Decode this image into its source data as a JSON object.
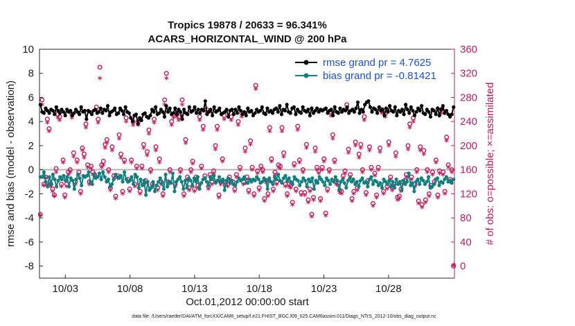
{
  "chart_data": {
    "type": "line",
    "title_line1": "Tropics 19878 / 20633 = 96.341%",
    "title_line2": "ACARS_HORIZONTAL_WIND @ 200 hPa",
    "xlabel": "Oct.01,2012 00:00:00 start",
    "ylabel": "rmse and bias (model - observation)",
    "y2label": "# of obs: o=possible; ×=assimilated",
    "footer": "data file: /Users/raeder/DAI/ATM_forcXX/CAM6_setup/f.e21.FHIST_BGC.f09_025.CAM6assim.011/Diags_NTrS_2012-10/obs_diag_output.nc",
    "x_tick_labels": [
      "10/03",
      "10/08",
      "10/13",
      "10/18",
      "10/23",
      "10/28"
    ],
    "x_tick_days": [
      3,
      8,
      13,
      18,
      23,
      28
    ],
    "xlim": [
      1.0,
      33.1
    ],
    "ylim": [
      -9,
      10
    ],
    "y_ticks": [
      -8,
      -6,
      -4,
      -2,
      0,
      2,
      4,
      6,
      8,
      10
    ],
    "y2lim": [
      -20,
      360
    ],
    "y2_ticks": [
      0,
      40,
      80,
      120,
      160,
      200,
      240,
      280,
      320,
      360
    ],
    "legend": [
      {
        "name": "rmse grand pr = 4.7625",
        "color": "#000000"
      },
      {
        "name": "bias grand pr = -0.81421",
        "color": "#0f7f7f"
      }
    ],
    "colors": {
      "rmse": "#000000",
      "bias": "#0f7f7f",
      "obs": "#c2185b",
      "zero": "#b3b3b3"
    },
    "series": [
      {
        "name": "rmse",
        "values": [
          5.4,
          4.8,
          4.7,
          5.1,
          4.9,
          4.7,
          5.0,
          4.9,
          4.6,
          5.2,
          4.9,
          4.7,
          5.0,
          4.8,
          4.5,
          5.0,
          4.8,
          4.9,
          4.5,
          4.7,
          5.0,
          4.8,
          4.6,
          5.2,
          4.8,
          4.9,
          4.2,
          4.9,
          4.8,
          4.6,
          4.9,
          5.0,
          4.7,
          4.8,
          5.1,
          4.7,
          5.0,
          4.9,
          5.3,
          4.5,
          4.8,
          4.9,
          5.1,
          4.6,
          4.7,
          5.1,
          4.9,
          4.6,
          5.2,
          4.8,
          4.7,
          4.3,
          4.0,
          4.5,
          4.6,
          3.8,
          4.3,
          4.1,
          4.6,
          4.7,
          4.4,
          4.3,
          4.5,
          5.0,
          4.8,
          5.2,
          4.6,
          4.7,
          5.0,
          4.8,
          4.4,
          5.3,
          4.8,
          5.1,
          4.6,
          4.7,
          5.1,
          4.6,
          5.0,
          4.8,
          4.2,
          5.0,
          4.7,
          4.6,
          5.2,
          4.8,
          4.9,
          5.2,
          4.7,
          5.0,
          4.7,
          5.0,
          4.9,
          5.7,
          4.6,
          4.8,
          5.0,
          4.5,
          5.2,
          4.8,
          4.9,
          5.1,
          4.6,
          4.7,
          4.8,
          5.0,
          4.4,
          4.9,
          5.0,
          4.6,
          5.0,
          4.7,
          5.2,
          4.9,
          4.6,
          4.8,
          4.5,
          5.1,
          4.8,
          4.9,
          4.5,
          4.7,
          5.0,
          4.8,
          4.9,
          5.2,
          4.7,
          4.6,
          5.1,
          4.8,
          4.9,
          4.7,
          5.0,
          5.1,
          4.8,
          5.3,
          4.6,
          5.0,
          4.9,
          5.4,
          4.8,
          4.7,
          5.1,
          5.2,
          4.6,
          5.0,
          4.8,
          4.7,
          5.2,
          4.9,
          4.8,
          5.0,
          4.5,
          5.1,
          4.7,
          4.9,
          5.1,
          4.8,
          5.0,
          4.9,
          5.0,
          5.1,
          4.7,
          4.9,
          5.0,
          4.5,
          5.2,
          4.8,
          4.7,
          5.1,
          4.8,
          5.0,
          4.9,
          5.2,
          4.7,
          4.9,
          5.0,
          4.8,
          5.1,
          5.6,
          4.7,
          5.0,
          4.8,
          5.4,
          5.6,
          5.7,
          5.2,
          4.8,
          5.1,
          5.0,
          4.7,
          5.2,
          4.9,
          5.0,
          4.5,
          5.1,
          4.8,
          5.3,
          4.9,
          4.8,
          5.2,
          4.5,
          4.9,
          4.8,
          5.0,
          4.6,
          5.4,
          5.0,
          4.7,
          5.2,
          4.9,
          4.5,
          4.8,
          5.1,
          4.9,
          5.3,
          4.7,
          4.6,
          5.0,
          4.8,
          4.4,
          5.0,
          4.9,
          4.6,
          5.1,
          4.5,
          5.0,
          5.3,
          4.7,
          4.9,
          4.6,
          4.4,
          4.6,
          5.2
        ]
      },
      {
        "name": "bias",
        "values": [
          -0.6,
          -0.6,
          -0.2,
          -1.0,
          -1.4,
          -0.6,
          -1.2,
          -0.4,
          -0.8,
          -1.4,
          -0.9,
          -0.6,
          -0.8,
          -0.5,
          -0.9,
          -0.6,
          -1.4,
          -0.7,
          -0.9,
          -1.6,
          -0.8,
          -0.4,
          -0.7,
          -1.3,
          -0.5,
          -0.6,
          -0.5,
          -0.2,
          -1.0,
          -1.2,
          -0.4,
          -0.7,
          -0.6,
          -0.3,
          -0.8,
          -0.2,
          -0.6,
          -1.0,
          -0.8,
          -1.4,
          -1.2,
          -0.8,
          -0.4,
          -0.6,
          -0.7,
          -0.5,
          -1.0,
          -0.2,
          -0.8,
          -1.0,
          -0.9,
          -0.6,
          -1.2,
          -0.4,
          -0.6,
          -1.5,
          -0.8,
          -1.3,
          -0.9,
          -2.1,
          -1.0,
          -1.7,
          -1.5,
          -1.0,
          -1.8,
          -1.3,
          -1.0,
          -0.7,
          -1.1,
          -1.6,
          -0.4,
          -1.4,
          -1.0,
          -1.1,
          -0.3,
          -1.8,
          -1.0,
          -0.8,
          -0.6,
          -1.0,
          -1.6,
          -0.9,
          -1.5,
          -0.7,
          -0.9,
          -1.3,
          -0.7,
          -1.0,
          -0.6,
          -1.6,
          -1.1,
          -0.8,
          -0.7,
          -1.0,
          -1.3,
          -0.6,
          -0.8,
          -0.5,
          -1.1,
          -0.9,
          -0.6,
          -1.0,
          -0.8,
          -1.7,
          -0.9,
          -0.7,
          -1.1,
          -0.9,
          -1.2,
          -1.3,
          -1.0,
          -0.7,
          -0.9,
          -0.8,
          -0.6,
          -1.1,
          -1.1,
          -0.8,
          -1.0,
          -0.8,
          -0.9,
          -0.6,
          -0.8,
          -1.1,
          -1.0,
          -0.7,
          -0.9,
          -1.6,
          -0.7,
          -1.0,
          -1.2,
          -0.6,
          -0.8,
          -0.4,
          -0.9,
          -1.1,
          -0.7,
          -0.5,
          -0.9,
          -0.7,
          -1.0,
          -1.2,
          -0.6,
          -0.8,
          -0.9,
          -1.3,
          -1.0,
          -0.7,
          -0.9,
          -1.4,
          -0.8,
          -1.0,
          -0.7,
          -1.6,
          -0.9,
          -1.1,
          -0.6,
          -0.8,
          -1.0,
          -1.3,
          -0.7,
          -0.9,
          -1.2,
          -0.8,
          -1.0,
          -0.6,
          -0.9,
          -1.7,
          -1.0,
          -0.8,
          -1.1,
          -1.5,
          -0.9,
          -0.7,
          -1.0,
          -0.8,
          -1.2,
          -1.0,
          -1.4,
          -0.9,
          -0.7,
          -1.1,
          -1.0,
          -1.4,
          -0.8,
          -0.6,
          -1.2,
          -0.9,
          -1.0,
          -1.3,
          -1.1,
          -1.5,
          -0.8,
          -1.0,
          -1.2,
          -0.9,
          -1.4,
          -1.0,
          -1.5,
          -0.8,
          -1.2,
          -1.0,
          -1.7,
          -0.9,
          -1.2,
          -1.0,
          -0.3,
          -1.3,
          -1.1,
          -1.8,
          -1.0,
          -0.8,
          -1.2,
          -0.7,
          -0.9,
          -1.2,
          -1.0,
          -0.6,
          -1.5,
          -1.4,
          -1.2,
          -0.8,
          -0.7,
          -1.3,
          -1.0,
          -1.1,
          -0.8,
          -0.6,
          -1.0,
          -0.9,
          -1.1,
          -0.8
        ]
      },
      {
        "name": "obs_possible",
        "values": [
          86,
          276,
          136,
          148,
          244,
          228,
          136,
          128,
          118,
          162,
          252,
          248,
          136,
          176,
          118,
          136,
          156,
          160,
          252,
          188,
          140,
          176,
          156,
          124,
          196,
          186,
          236,
          168,
          140,
          166,
          156,
          152,
          264,
          244,
          330,
          168,
          174,
          202,
          210,
          160,
          130,
          198,
          150,
          116,
          150,
          218,
          186,
          124,
          176,
          246,
          144,
          128,
          176,
          240,
          136,
          166,
          240,
          124,
          166,
          202,
          142,
          190,
          226,
          160,
          136,
          244,
          198,
          130,
          178,
          140,
          120,
          276,
          320,
          140,
          160,
          240,
          252,
          136,
          254,
          248,
          160,
          276,
          120,
          210,
          148,
          130,
          160,
          174,
          128,
          148,
          134,
          248,
          166,
          232,
          150,
          260,
          132,
          152,
          140,
          158,
          200,
          232,
          118,
          140,
          178,
          250,
          140,
          136,
          148,
          248,
          140,
          128,
          152,
          240,
          164,
          254,
          140,
          196,
          148,
          126,
          208,
          164,
          120,
          300,
          158,
          130,
          166,
          160,
          112,
          142,
          120,
          230,
          178,
          128,
          156,
          140,
          168,
          166,
          230,
          188,
          136,
          120,
          136,
          134,
          106,
          170,
          128,
          232,
          176,
          122,
          160,
          122,
          202,
          110,
          128,
          86,
          114,
          196,
          164,
          158,
          112,
          164,
          178,
          88,
          128,
          160,
          256,
          218,
          176,
          140,
          138,
          126,
          124,
          150,
          158,
          268,
          194,
          152,
          112,
          124,
          206,
          130,
          186,
          202,
          160,
          248,
          122,
          142,
          198,
          164,
          104,
          154,
          118,
          164,
          196,
          260,
          124,
          254,
          132,
          206,
          148,
          130,
          136,
          188,
          114,
          116,
          128,
          140,
          142,
          152,
          200,
          236,
          148,
          246,
          136,
          160,
          108,
          198,
          102,
          192,
          110,
          160,
          120,
          134,
          156,
          140,
          176,
          118,
          158,
          260,
          156,
          124,
          214,
          168,
          144,
          160,
          0
        ]
      },
      {
        "name": "obs_assimilated",
        "values": [
          82,
          266,
          132,
          144,
          236,
          222,
          130,
          122,
          114,
          154,
          244,
          240,
          130,
          170,
          112,
          130,
          150,
          154,
          244,
          180,
          134,
          170,
          150,
          118,
          190,
          178,
          228,
          162,
          134,
          160,
          150,
          146,
          256,
          236,
          310,
          162,
          166,
          194,
          202,
          154,
          124,
          190,
          144,
          110,
          144,
          210,
          178,
          118,
          170,
          238,
          138,
          122,
          170,
          232,
          130,
          160,
          232,
          118,
          160,
          194,
          136,
          182,
          218,
          154,
          130,
          236,
          190,
          124,
          170,
          134,
          114,
          266,
          310,
          134,
          154,
          232,
          244,
          130,
          246,
          240,
          154,
          266,
          114,
          202,
          142,
          124,
          154,
          168,
          122,
          142,
          128,
          240,
          160,
          224,
          144,
          252,
          126,
          146,
          134,
          152,
          192,
          224,
          112,
          134,
          172,
          242,
          134,
          130,
          142,
          240,
          134,
          122,
          146,
          232,
          158,
          246,
          134,
          188,
          142,
          120,
          200,
          158,
          114,
          292,
          152,
          124,
          160,
          154,
          106,
          136,
          114,
          222,
          172,
          122,
          150,
          134,
          162,
          160,
          222,
          180,
          130,
          114,
          130,
          128,
          100,
          164,
          122,
          224,
          170,
          116,
          154,
          116,
          194,
          104,
          122,
          80,
          108,
          188,
          158,
          152,
          106,
          158,
          172,
          82,
          122,
          154,
          248,
          210,
          170,
          134,
          132,
          120,
          118,
          144,
          152,
          260,
          186,
          146,
          106,
          118,
          198,
          124,
          178,
          194,
          154,
          240,
          116,
          136,
          190,
          158,
          98,
          148,
          112,
          158,
          188,
          252,
          118,
          246,
          126,
          198,
          142,
          124,
          130,
          180,
          108,
          110,
          122,
          134,
          136,
          146,
          192,
          228,
          142,
          238,
          130,
          154,
          102,
          190,
          96,
          184,
          104,
          154,
          114,
          128,
          150,
          134,
          170,
          112,
          152,
          252,
          150,
          118,
          206,
          162,
          138,
          154,
          0
        ]
      }
    ]
  }
}
